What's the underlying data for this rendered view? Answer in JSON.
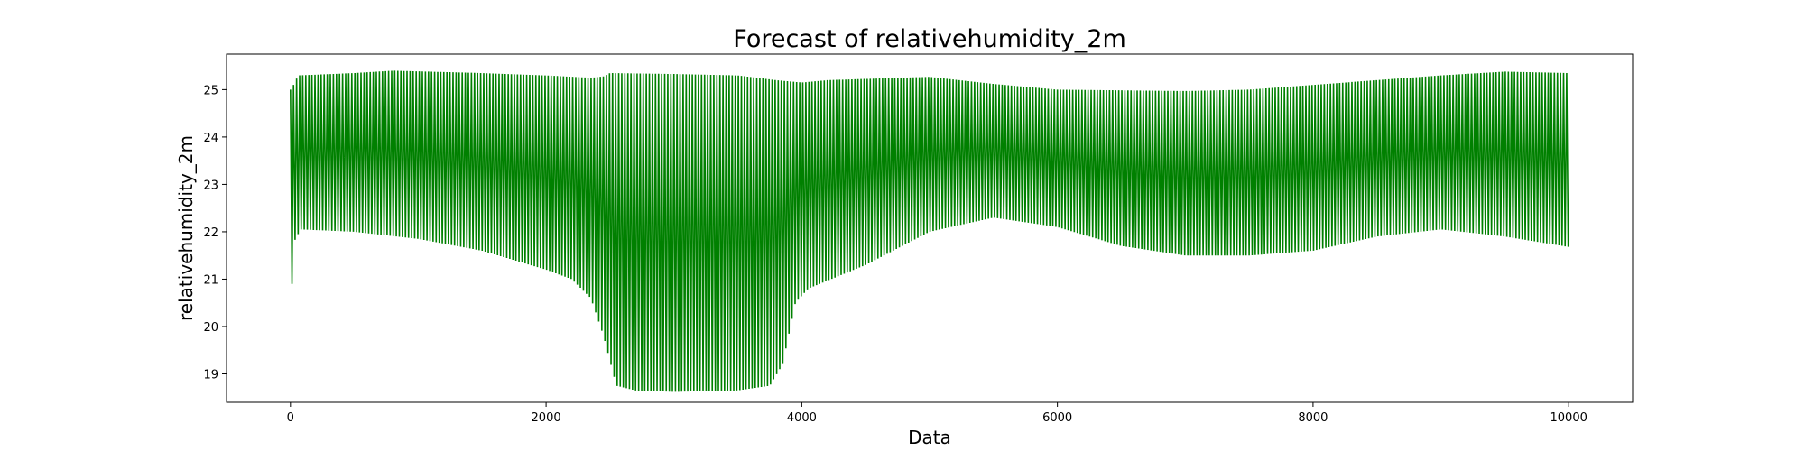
{
  "chart_data": {
    "type": "line",
    "title": "Forecast of relativehumidity_2m",
    "xlabel": "Data",
    "ylabel": "relativehumidity_2m",
    "xlim": [
      -500,
      10500
    ],
    "ylim": [
      18.4,
      25.75
    ],
    "x_ticks": [
      0,
      2000,
      4000,
      6000,
      8000,
      10000
    ],
    "y_ticks": [
      19,
      20,
      21,
      22,
      23,
      24,
      25
    ],
    "grid": false,
    "legend": "none",
    "series": [
      {
        "color": "#008000",
        "oscillation_period": 24,
        "x_range": [
          0,
          10000
        ],
        "upper_envelope": [
          [
            0,
            25.0
          ],
          [
            15,
            25.05
          ],
          [
            60,
            25.3
          ],
          [
            500,
            25.35
          ],
          [
            800,
            25.4
          ],
          [
            1500,
            25.35
          ],
          [
            2000,
            25.3
          ],
          [
            2350,
            25.25
          ],
          [
            2450,
            25.28
          ],
          [
            2500,
            25.35
          ],
          [
            3000,
            25.33
          ],
          [
            3500,
            25.3
          ],
          [
            3800,
            25.2
          ],
          [
            4000,
            25.15
          ],
          [
            4200,
            25.2
          ],
          [
            5000,
            25.27
          ],
          [
            5500,
            25.12
          ],
          [
            6000,
            25.0
          ],
          [
            7000,
            24.97
          ],
          [
            7500,
            25.0
          ],
          [
            8000,
            25.1
          ],
          [
            9000,
            25.3
          ],
          [
            9500,
            25.38
          ],
          [
            10000,
            25.35
          ]
        ],
        "lower_envelope": [
          [
            0,
            24.5
          ],
          [
            10,
            20.8
          ],
          [
            30,
            21.8
          ],
          [
            80,
            22.05
          ],
          [
            500,
            22.0
          ],
          [
            1000,
            21.85
          ],
          [
            1500,
            21.6
          ],
          [
            2000,
            21.2
          ],
          [
            2200,
            21.0
          ],
          [
            2350,
            20.6
          ],
          [
            2450,
            19.8
          ],
          [
            2550,
            18.75
          ],
          [
            2700,
            18.65
          ],
          [
            3000,
            18.62
          ],
          [
            3500,
            18.65
          ],
          [
            3750,
            18.75
          ],
          [
            3850,
            19.2
          ],
          [
            3950,
            20.5
          ],
          [
            4050,
            20.8
          ],
          [
            4500,
            21.3
          ],
          [
            5000,
            22.0
          ],
          [
            5500,
            22.3
          ],
          [
            6000,
            22.1
          ],
          [
            6500,
            21.7
          ],
          [
            7000,
            21.5
          ],
          [
            7500,
            21.5
          ],
          [
            8000,
            21.6
          ],
          [
            8500,
            21.9
          ],
          [
            9000,
            22.05
          ],
          [
            9500,
            21.9
          ],
          [
            10000,
            21.68
          ]
        ]
      }
    ]
  }
}
